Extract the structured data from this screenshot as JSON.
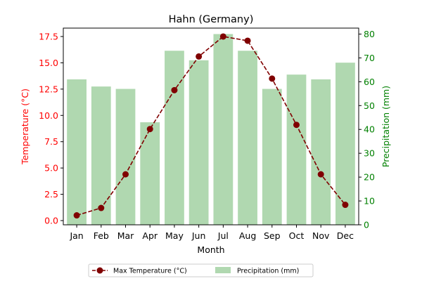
{
  "chart_data": {
    "type": "bar",
    "title": "Hahn (Germany)",
    "xlabel": "Month",
    "categories": [
      "Jan",
      "Feb",
      "Mar",
      "Apr",
      "May",
      "Jun",
      "Jul",
      "Aug",
      "Sep",
      "Oct",
      "Nov",
      "Dec"
    ],
    "left_axis": {
      "label": "Temperature (°C)",
      "color": "#ff0000",
      "ylim": [
        -0.4,
        18.3
      ],
      "ticks": [
        "0.0",
        "2.5",
        "5.0",
        "7.5",
        "10.0",
        "12.5",
        "15.0",
        "17.5"
      ],
      "tick_values": [
        0,
        2.5,
        5,
        7.5,
        10,
        12.5,
        15,
        17.5
      ]
    },
    "right_axis": {
      "label": "Precipitation (mm)",
      "color": "#008000",
      "ylim": [
        0,
        82.5
      ],
      "ticks": [
        "0",
        "10",
        "20",
        "30",
        "40",
        "50",
        "60",
        "70",
        "80"
      ],
      "tick_values": [
        0,
        10,
        20,
        30,
        40,
        50,
        60,
        70,
        80
      ]
    },
    "series": [
      {
        "name": "Max Temperature (°C)",
        "type": "line",
        "axis": "left",
        "color": "#800000",
        "line_style": "dashed",
        "marker": "circle",
        "values": [
          0.5,
          1.2,
          4.4,
          8.7,
          12.4,
          15.6,
          17.5,
          17.1,
          13.5,
          9.1,
          4.4,
          1.5
        ]
      },
      {
        "name": "Precipitation (mm)",
        "type": "bar",
        "axis": "right",
        "color": "#b0d8b0",
        "values": [
          61,
          58,
          57,
          43,
          73,
          69,
          80,
          73,
          57,
          63,
          61,
          68
        ]
      }
    ],
    "legend_position": "bottom-center",
    "grid": false
  }
}
